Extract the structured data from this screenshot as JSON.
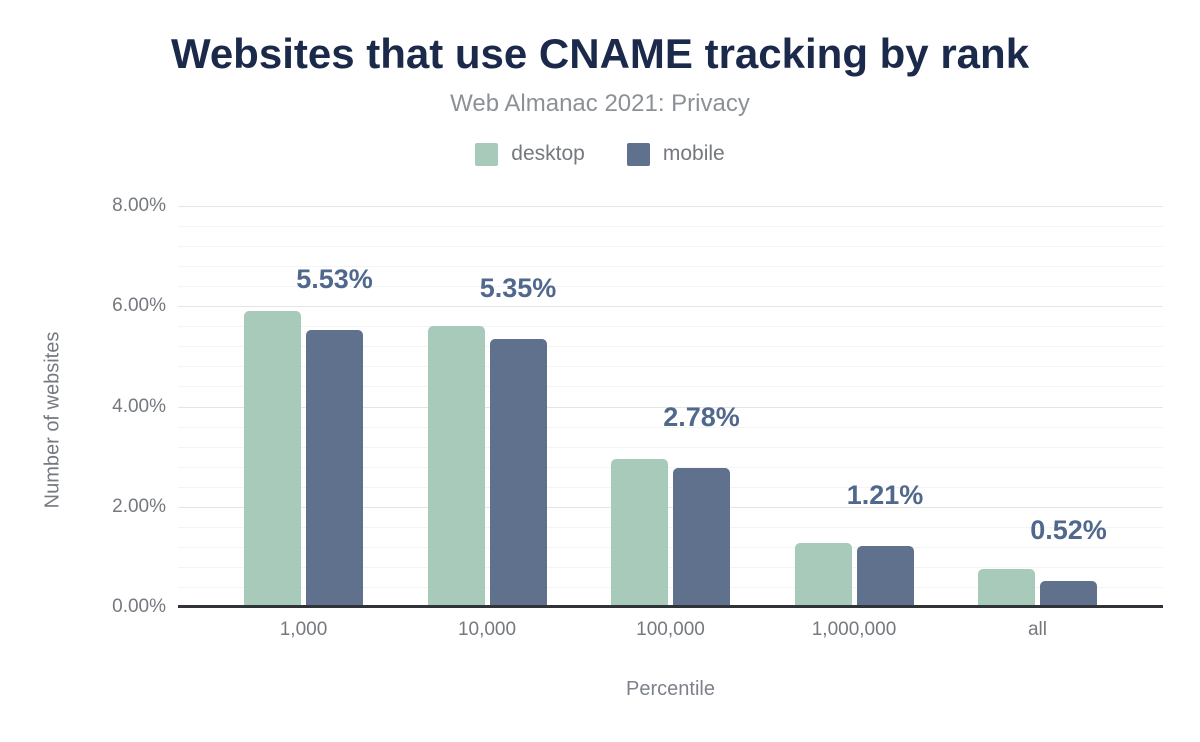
{
  "page": {
    "background": "#ffffff"
  },
  "header": {
    "title": "Websites that use CNAME tracking by rank",
    "subtitle": "Web Almanac 2021: Privacy"
  },
  "legend": {
    "items": [
      {
        "label": "desktop",
        "color": "#a8caba"
      },
      {
        "label": "mobile",
        "color": "#5f718d"
      }
    ]
  },
  "chart_data": {
    "type": "bar",
    "title": "Websites that use CNAME tracking by rank",
    "subtitle": "Web Almanac 2021: Privacy",
    "unit": "percent",
    "categories": [
      "1,000",
      "10,000",
      "100,000",
      "1,000,000",
      "all"
    ],
    "series": [
      {
        "name": "desktop",
        "color": "#a8caba",
        "values": [
          5.9,
          5.6,
          2.95,
          1.28,
          0.75
        ]
      },
      {
        "name": "mobile",
        "color": "#5f718d",
        "values": [
          5.53,
          5.35,
          2.78,
          1.21,
          0.52
        ],
        "data_labels": [
          "5.53%",
          "5.35%",
          "2.78%",
          "1.21%",
          "0.52%"
        ]
      }
    ],
    "labeled_series": "mobile",
    "xlabel": "Percentile",
    "ylabel": "Number of websites",
    "ylim": [
      0,
      8
    ],
    "y_ticks": [
      {
        "v": 0,
        "label": "0.00%"
      },
      {
        "v": 2,
        "label": "2.00%"
      },
      {
        "v": 4,
        "label": "4.00%"
      },
      {
        "v": 6,
        "label": "6.00%"
      },
      {
        "v": 8,
        "label": "8.00%"
      }
    ],
    "y_minor_step": 0.4,
    "grid": "horizontal",
    "legend_position": "top",
    "colors": {
      "title_text": "#1b2a4a",
      "subtitle_text": "#8c9198",
      "data_label_text": "#50688e",
      "axis_text": "#75797f",
      "axis_line": "#303439",
      "gridline_major": "#e5e5e5",
      "gridline_minor": "#f4f4f4"
    }
  }
}
